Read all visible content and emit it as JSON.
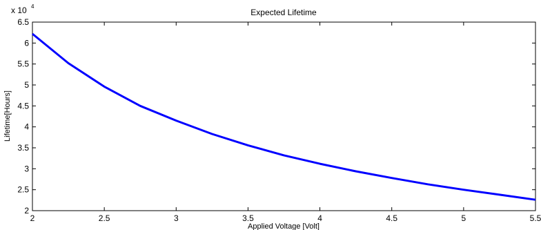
{
  "chart_data": {
    "type": "line",
    "title": "Expected Lifetime",
    "xlabel": "Applied Voltage [Volt]",
    "ylabel": "Lifetime[Hours]",
    "y_multiplier": {
      "base": "x 10",
      "exponent": "4"
    },
    "xlim": [
      2,
      5.5
    ],
    "ylim": [
      2,
      6.5
    ],
    "y_scale_factor": 10000,
    "x_ticks": [
      "2",
      "2.5",
      "3",
      "3.5",
      "4",
      "4.5",
      "5",
      "5.5"
    ],
    "y_ticks": [
      "2",
      "2.5",
      "3",
      "3.5",
      "4",
      "4.5",
      "5",
      "5.5",
      "6",
      "6.5"
    ],
    "grid": false,
    "series": [
      {
        "color": "#0000ff",
        "x": [
          2,
          2.25,
          2.5,
          2.75,
          3,
          3.25,
          3.5,
          3.75,
          4,
          4.25,
          4.5,
          4.75,
          5,
          5.25,
          5.5
        ],
        "y": [
          6.22,
          5.52,
          4.96,
          4.5,
          4.15,
          3.83,
          3.56,
          3.32,
          3.12,
          2.94,
          2.78,
          2.63,
          2.5,
          2.38,
          2.26
        ]
      }
    ]
  }
}
